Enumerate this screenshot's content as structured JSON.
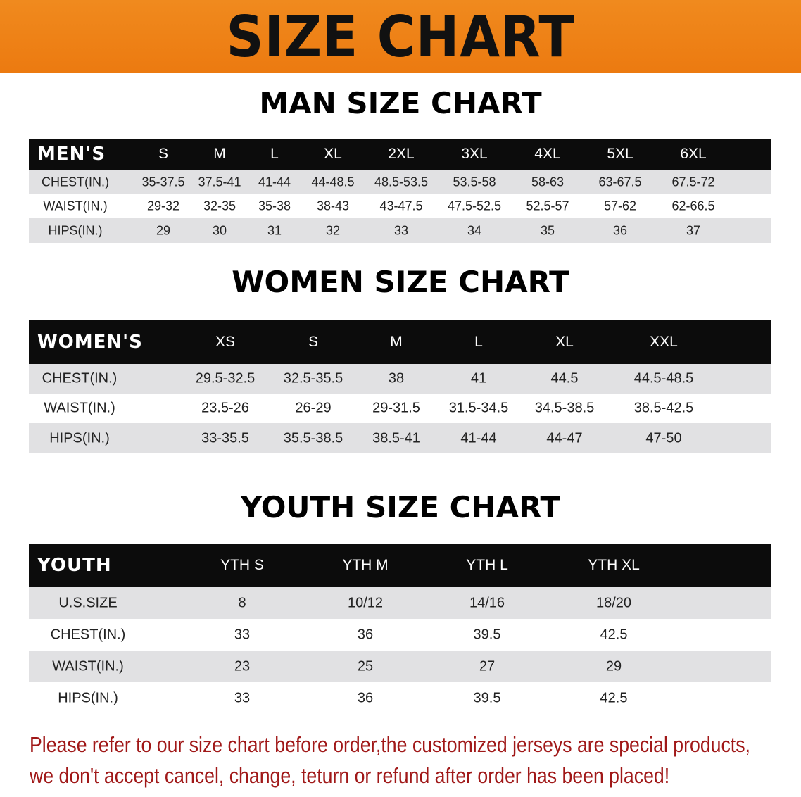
{
  "banner_title": "SIZE CHART",
  "accent_color": "#ec7a10",
  "note_color": "#a01818",
  "men": {
    "title": "MAN SIZE CHART",
    "header": [
      "MEN'S",
      "S",
      "M",
      "L",
      "XL",
      "2XL",
      "3XL",
      "4XL",
      "5XL",
      "6XL"
    ],
    "rows": [
      [
        "CHEST(IN.)",
        "35-37.5",
        "37.5-41",
        "41-44",
        "44-48.5",
        "48.5-53.5",
        "53.5-58",
        "58-63",
        "63-67.5",
        "67.5-72"
      ],
      [
        "WAIST(IN.)",
        "29-32",
        "32-35",
        "35-38",
        "38-43",
        "43-47.5",
        "47.5-52.5",
        "52.5-57",
        "57-62",
        "62-66.5"
      ],
      [
        "HIPS(IN.)",
        "29",
        "30",
        "31",
        "32",
        "33",
        "34",
        "35",
        "36",
        "37"
      ]
    ]
  },
  "women": {
    "title": "WOMEN SIZE CHART",
    "header": [
      "WOMEN'S",
      "XS",
      "S",
      "M",
      "L",
      "XL",
      "XXL"
    ],
    "rows": [
      [
        "CHEST(IN.)",
        "29.5-32.5",
        "32.5-35.5",
        "38",
        "41",
        "44.5",
        "44.5-48.5"
      ],
      [
        "WAIST(IN.)",
        "23.5-26",
        "26-29",
        "29-31.5",
        "31.5-34.5",
        "34.5-38.5",
        "38.5-42.5"
      ],
      [
        "HIPS(IN.)",
        "33-35.5",
        "35.5-38.5",
        "38.5-41",
        "41-44",
        "44-47",
        "47-50"
      ]
    ]
  },
  "youth": {
    "title": "YOUTH SIZE CHART",
    "header": [
      "YOUTH",
      "YTH S",
      "YTH M",
      "YTH L",
      "YTH XL"
    ],
    "rows": [
      [
        "U.S.SIZE",
        "8",
        "10/12",
        "14/16",
        "18/20"
      ],
      [
        "CHEST(IN.)",
        "33",
        "36",
        "39.5",
        "42.5"
      ],
      [
        "WAIST(IN.)",
        "23",
        "25",
        "27",
        "29"
      ],
      [
        "HIPS(IN.)",
        "33",
        "36",
        "39.5",
        "42.5"
      ]
    ]
  },
  "note_lines": [
    "Please refer to our size chart before order,the customized jerseys are special products,",
    "we don't accept cancel, change, teturn or refund after order has been placed!"
  ]
}
